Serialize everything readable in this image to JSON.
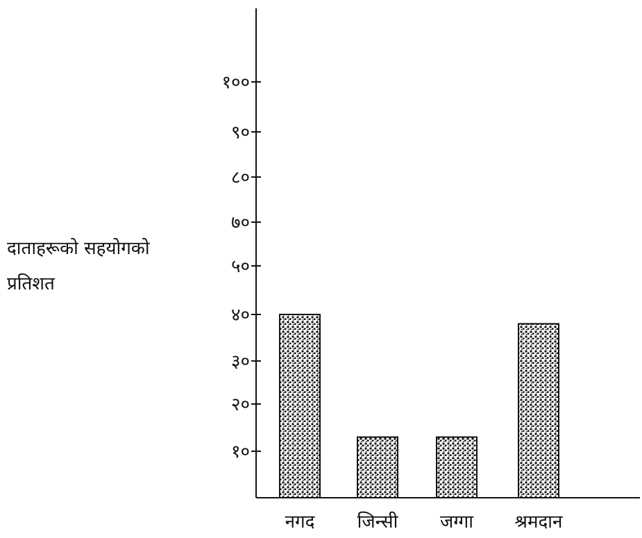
{
  "chart_data": {
    "type": "bar",
    "categories": [
      "नगद",
      "जिन्सी",
      "जग्गा",
      "श्रमदान"
    ],
    "values": [
      40,
      13,
      13,
      38
    ],
    "ylabel": "दाताहरूको सहयोगको प्रतिशत",
    "ylabel_lines": [
      "दाताहरूको सहयोगको",
      "प्रतिशत"
    ],
    "xlabel": "",
    "ylim": [
      0,
      110
    ],
    "grid": false,
    "y_ticks": [
      {
        "value": 10,
        "label": "१०"
      },
      {
        "value": 20,
        "label": "२०"
      },
      {
        "value": 30,
        "label": "३०"
      },
      {
        "value": 40,
        "label": "४०"
      },
      {
        "value": 50,
        "label": "५०"
      },
      {
        "value": 70,
        "label": "७०"
      },
      {
        "value": 80,
        "label": "८०"
      },
      {
        "value": 90,
        "label": "९०"
      },
      {
        "value": 100,
        "label": "१००"
      }
    ],
    "colors": {
      "bar_fill_pattern": "dotted-black-on-white",
      "bar_stroke": "#111111",
      "axis": "#111111"
    }
  }
}
